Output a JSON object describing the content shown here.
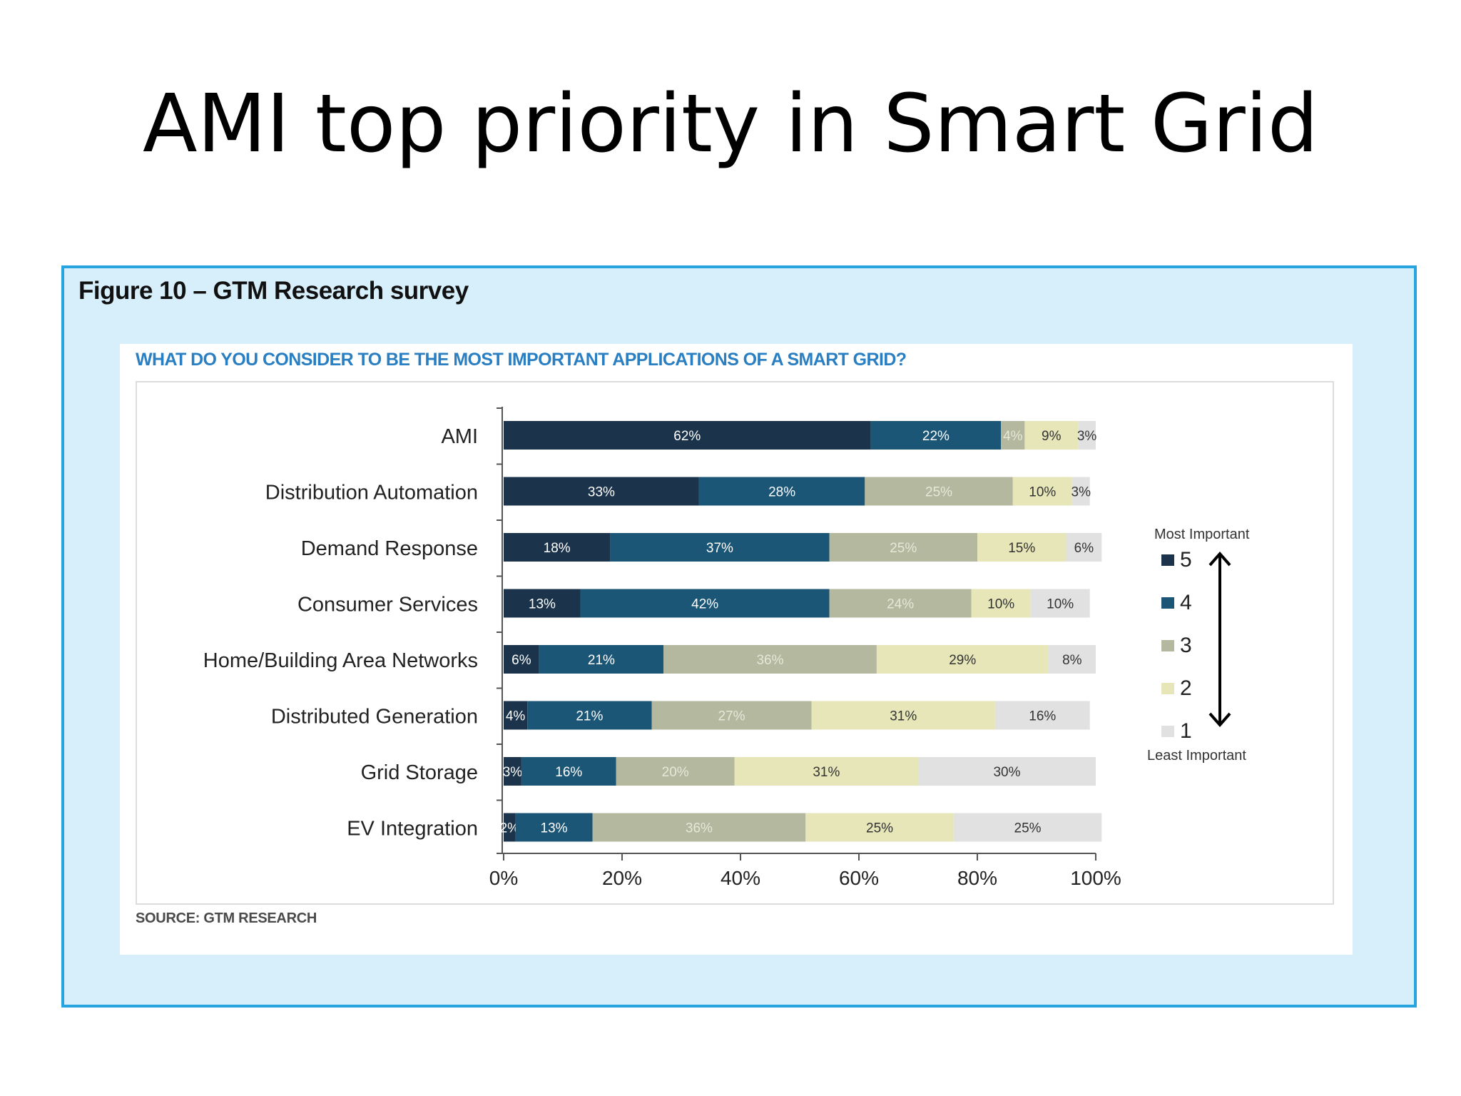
{
  "slide": {
    "title": "AMI top priority in Smart Grid"
  },
  "figure": {
    "caption": "Figure 10 – GTM Research survey",
    "source": "SOURCE: GTM RESEARCH"
  },
  "colors": {
    "frame_border": "#27a3e0",
    "frame_fill": "#d7eefb",
    "question": "#2a7fc2"
  },
  "chart_data": {
    "type": "bar",
    "orientation": "horizontal",
    "stacked": true,
    "title": "WHAT DO YOU CONSIDER TO BE THE MOST IMPORTANT APPLICATIONS OF A SMART GRID?",
    "xlim": [
      0,
      100
    ],
    "x_ticks": [
      "0%",
      "20%",
      "40%",
      "60%",
      "80%",
      "100%"
    ],
    "grid": false,
    "legend_position": "right",
    "legend_top_label": "Most Important",
    "legend_bottom_label": "Least Important",
    "categories": [
      "AMI",
      "Distribution Automation",
      "Demand Response",
      "Consumer Services",
      "Home/Building Area Networks",
      "Distributed Generation",
      "Grid Storage",
      "EV Integration"
    ],
    "series": [
      {
        "name": "5",
        "color": "#1c344b",
        "text_color": "#ffffff",
        "values": [
          62,
          33,
          18,
          13,
          6,
          4,
          3,
          2
        ]
      },
      {
        "name": "4",
        "color": "#1b5677",
        "text_color": "#ffffff",
        "values": [
          22,
          28,
          37,
          42,
          21,
          21,
          16,
          13
        ]
      },
      {
        "name": "3",
        "color": "#b3b89e",
        "text_color": "#e6e8d8",
        "values": [
          4,
          25,
          25,
          24,
          36,
          27,
          20,
          36
        ]
      },
      {
        "name": "2",
        "color": "#e6e6b9",
        "text_color": "#333333",
        "values": [
          9,
          10,
          15,
          10,
          29,
          31,
          31,
          25
        ]
      },
      {
        "name": "1",
        "color": "#e1e1e1",
        "text_color": "#333333",
        "values": [
          3,
          3,
          6,
          10,
          8,
          16,
          30,
          25
        ]
      }
    ],
    "labels": [
      [
        "62%",
        "22%",
        "4%",
        "9%",
        "3%"
      ],
      [
        "33%",
        "28%",
        "25%",
        "10%",
        "3%"
      ],
      [
        "18%",
        "37%",
        "25%",
        "15%",
        "6%"
      ],
      [
        "13%",
        "42%",
        "24%",
        "10%",
        "10%"
      ],
      [
        "6%",
        "21%",
        "36%",
        "29%",
        "8%"
      ],
      [
        "4%",
        "21%",
        "27%",
        "31%",
        "16%"
      ],
      [
        "3%",
        "16%",
        "20%",
        "31%",
        "30%"
      ],
      [
        "2%",
        "13%",
        "36%",
        "25%",
        "25%"
      ]
    ]
  }
}
